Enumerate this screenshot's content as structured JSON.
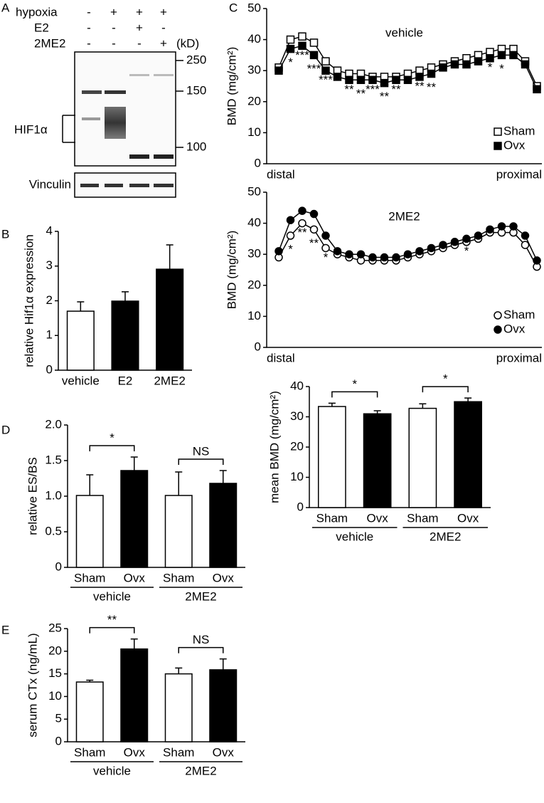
{
  "panel_labels": [
    "A",
    "B",
    "C",
    "D",
    "E"
  ],
  "blot": {
    "rows": [
      {
        "label": "hypoxia",
        "marks": [
          "-",
          "+",
          "+",
          "+"
        ]
      },
      {
        "label": "E2",
        "marks": [
          "-",
          "-",
          "+",
          "-"
        ]
      },
      {
        "label": "2ME2",
        "marks": [
          "-",
          "-",
          "-",
          "+"
        ]
      }
    ],
    "unit": "(kD)",
    "markers": [
      250,
      150,
      100
    ],
    "protein": "HIF1α",
    "loading": "Vinculin"
  },
  "chart_data": [
    {
      "type": "bar",
      "ylabel": "relative Hif1α expression",
      "categories": [
        "vehicle",
        "E2",
        "2ME2"
      ],
      "values": [
        1.7,
        1.99,
        2.91
      ],
      "errors": [
        0.27,
        0.27,
        0.7
      ],
      "colors": [
        "#ffffff",
        "#000000",
        "#000000"
      ],
      "ylim": [
        0,
        4
      ],
      "yticks": [
        0,
        1,
        2,
        3,
        4
      ]
    },
    {
      "type": "line",
      "title": "vehicle",
      "ylabel": "BMD (mg/cm²)",
      "x_start_label": "distal",
      "x_end_label": "proximal",
      "categories": [
        null,
        null,
        null,
        null,
        null,
        null,
        null,
        null,
        null,
        null,
        null,
        null,
        null,
        null,
        null,
        null,
        null,
        null,
        null,
        null,
        null,
        null,
        null
      ],
      "series": [
        {
          "name": "Sham",
          "marker": "square",
          "color": "#ffffff",
          "values": [
            31,
            40,
            41,
            39,
            33,
            30,
            29,
            29,
            28,
            28,
            28,
            29,
            30,
            31,
            32,
            33,
            34,
            35,
            36,
            37,
            37,
            33,
            25
          ]
        },
        {
          "name": "Ovx",
          "marker": "square",
          "color": "#000000",
          "values": [
            30,
            37,
            38,
            35,
            30,
            28,
            27,
            27,
            27,
            26,
            27,
            27,
            28,
            29,
            31,
            32,
            32,
            33,
            34,
            35,
            35,
            32,
            24
          ]
        }
      ],
      "stars": [
        null,
        "*",
        "***",
        "***",
        "***",
        null,
        "**",
        "**",
        "***",
        "**",
        "**",
        null,
        "**",
        "**",
        null,
        null,
        null,
        null,
        "*",
        "*",
        null,
        null,
        null
      ],
      "ylim": [
        0,
        50
      ],
      "yticks": [
        0,
        10,
        20,
        30,
        40,
        50
      ],
      "legend": "lower right"
    },
    {
      "type": "line",
      "title": "2ME2",
      "ylabel": "BMD (mg/cm²)",
      "x_start_label": "distal",
      "x_end_label": "proximal",
      "categories": [
        null,
        null,
        null,
        null,
        null,
        null,
        null,
        null,
        null,
        null,
        null,
        null,
        null,
        null,
        null,
        null,
        null,
        null,
        null,
        null,
        null,
        null,
        null
      ],
      "series": [
        {
          "name": "Sham",
          "marker": "circle",
          "color": "#ffffff",
          "values": [
            29,
            36,
            40,
            38,
            32,
            30,
            29,
            28,
            28,
            28,
            28,
            29,
            30,
            31,
            32,
            33,
            34,
            35,
            37,
            37,
            37,
            33,
            26
          ]
        },
        {
          "name": "Ovx",
          "marker": "circle",
          "color": "#000000",
          "values": [
            31,
            41,
            44,
            43,
            36,
            31,
            30,
            30,
            29,
            29,
            29,
            30,
            31,
            32,
            33,
            34,
            35,
            36,
            38,
            39,
            39,
            36,
            28
          ]
        }
      ],
      "stars": [
        null,
        "*",
        "**",
        "**",
        "*",
        null,
        null,
        null,
        null,
        null,
        null,
        null,
        null,
        null,
        null,
        null,
        "*",
        null,
        null,
        null,
        null,
        null,
        null
      ],
      "ylim": [
        0,
        50
      ],
      "yticks": [
        0,
        10,
        20,
        30,
        40,
        50
      ],
      "legend": "lower right"
    },
    {
      "type": "bar",
      "ylabel": "mean BMD (mg/cm²)",
      "categories": [
        "Sham",
        "Ovx",
        "Sham",
        "Ovx"
      ],
      "groups": [
        "vehicle",
        "2ME2"
      ],
      "significance": [
        "*",
        "*"
      ],
      "values": [
        33.4,
        31.0,
        32.8,
        35.0
      ],
      "errors": [
        1.1,
        1.0,
        1.5,
        1.2
      ],
      "colors": [
        "#ffffff",
        "#000000",
        "#ffffff",
        "#000000"
      ],
      "ylim": [
        0,
        40
      ],
      "yticks": [
        0,
        10,
        20,
        30,
        40
      ]
    },
    {
      "type": "bar",
      "ylabel": "relative ES/BS",
      "categories": [
        "Sham",
        "Ovx",
        "Sham",
        "Ovx"
      ],
      "groups": [
        "vehicle",
        "2ME2"
      ],
      "significance": [
        "*",
        "NS"
      ],
      "values": [
        1.01,
        1.36,
        1.01,
        1.18
      ],
      "errors": [
        0.29,
        0.19,
        0.33,
        0.18
      ],
      "colors": [
        "#ffffff",
        "#000000",
        "#ffffff",
        "#000000"
      ],
      "ylim": [
        0,
        2
      ],
      "yticks": [
        0,
        0.5,
        {
          "value": 1,
          "label": "1.0"
        },
        1.5,
        {
          "value": 2,
          "label": "2.0"
        }
      ]
    },
    {
      "type": "bar",
      "ylabel": "serum CTx (ng/mL)",
      "categories": [
        "Sham",
        "Ovx",
        "Sham",
        "Ovx"
      ],
      "groups": [
        "vehicle",
        "2ME2"
      ],
      "significance": [
        "**",
        "NS"
      ],
      "values": [
        13.2,
        20.5,
        15.0,
        15.9
      ],
      "errors": [
        0.4,
        2.2,
        1.3,
        2.4
      ],
      "colors": [
        "#ffffff",
        "#000000",
        "#ffffff",
        "#000000"
      ],
      "ylim": [
        0,
        25
      ],
      "yticks": [
        0,
        5,
        10,
        15,
        20,
        25
      ]
    }
  ]
}
